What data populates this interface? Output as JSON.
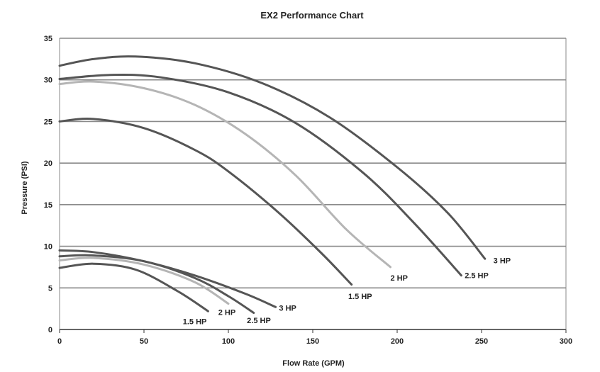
{
  "chart_data": {
    "type": "line",
    "title": "EX2 Performance Chart",
    "xlabel": "Flow Rate (GPM)",
    "ylabel": "Pressure (PSI)",
    "xlim": [
      0,
      300
    ],
    "ylim": [
      0,
      35
    ],
    "x_ticks": [
      "0",
      "50",
      "100",
      "150",
      "200",
      "250",
      "300"
    ],
    "y_ticks": [
      "0",
      "5",
      "10",
      "15",
      "20",
      "25",
      "30",
      "35"
    ],
    "grid": "horizontal",
    "series": [
      {
        "name": "3 HP",
        "color": "#555555",
        "x": [
          0,
          20,
          45,
          80,
          120,
          160,
          200,
          230,
          252
        ],
        "y": [
          31.7,
          32.5,
          32.8,
          32.0,
          29.6,
          25.5,
          19.5,
          14.0,
          8.5
        ]
      },
      {
        "name": "2.5 HP",
        "color": "#555555",
        "x": [
          0,
          30,
          60,
          100,
          140,
          180,
          210,
          238
        ],
        "y": [
          30.1,
          30.6,
          30.3,
          28.5,
          24.8,
          18.8,
          12.8,
          6.5
        ]
      },
      {
        "name": "2 HP",
        "color": "#b5b5b5",
        "x": [
          0,
          20,
          50,
          80,
          110,
          140,
          170,
          196
        ],
        "y": [
          29.5,
          29.8,
          29.0,
          27.0,
          23.5,
          18.5,
          12.0,
          7.5
        ]
      },
      {
        "name": "1.5 HP",
        "color": "#555555",
        "x": [
          0,
          20,
          50,
          80,
          100,
          130,
          155,
          173
        ],
        "y": [
          25.0,
          25.3,
          24.2,
          21.6,
          19.0,
          14.0,
          9.2,
          5.4
        ]
      },
      {
        "name": "3 HP",
        "color": "#555555",
        "x": [
          0,
          20,
          50,
          80,
          110,
          128
        ],
        "y": [
          9.5,
          9.3,
          8.2,
          6.5,
          4.3,
          2.7
        ]
      },
      {
        "name": "2.5 HP",
        "color": "#555555",
        "x": [
          0,
          20,
          50,
          80,
          100,
          115
        ],
        "y": [
          8.8,
          8.9,
          8.2,
          6.2,
          4.0,
          2.0
        ]
      },
      {
        "name": "2 HP",
        "color": "#b5b5b5",
        "x": [
          0,
          20,
          50,
          80,
          100
        ],
        "y": [
          8.3,
          8.6,
          7.8,
          5.7,
          3.1
        ]
      },
      {
        "name": "1.5 HP",
        "color": "#555555",
        "x": [
          0,
          20,
          45,
          70,
          88
        ],
        "y": [
          7.4,
          7.9,
          7.2,
          4.6,
          2.2
        ]
      }
    ],
    "curve_labels": [
      {
        "text": "3 HP",
        "x": 257,
        "y": 8.3
      },
      {
        "text": "2.5 HP",
        "x": 240,
        "y": 6.5
      },
      {
        "text": "2 HP",
        "x": 196,
        "y": 6.2
      },
      {
        "text": "1.5 HP",
        "x": 171,
        "y": 4.0
      },
      {
        "text": "3 HP",
        "x": 130,
        "y": 2.6
      },
      {
        "text": "2.5 HP",
        "x": 111,
        "y": 1.1
      },
      {
        "text": "2 HP",
        "x": 94,
        "y": 2.1
      },
      {
        "text": "1.5 HP",
        "x": 73,
        "y": 1.0
      }
    ]
  }
}
